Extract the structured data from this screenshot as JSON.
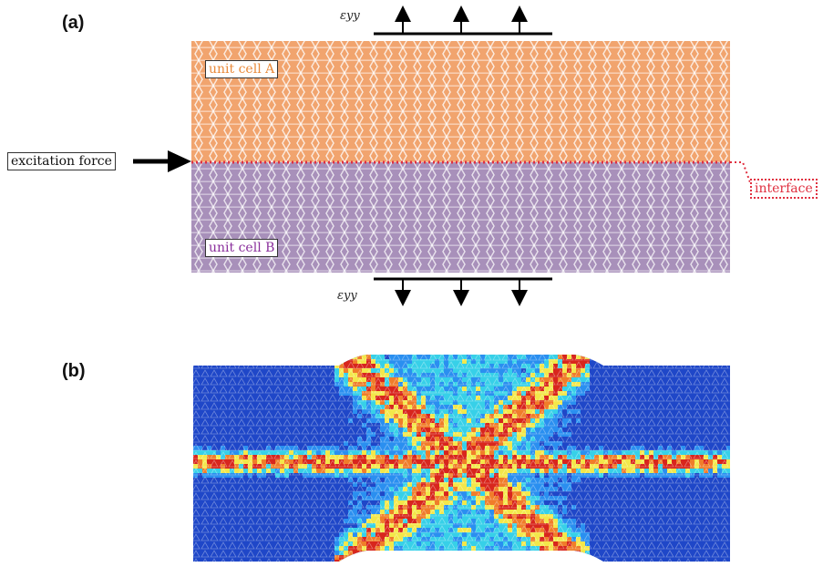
{
  "panels": {
    "a_label": "(a)",
    "b_label": "(b)"
  },
  "panel_a": {
    "unit_cell_a_label": "unit cell A",
    "unit_cell_b_label": "unit cell B",
    "excitation_label": "excitation force",
    "interface_label": "interface",
    "strain_top": "εyy",
    "strain_bottom": "εyy",
    "colors": {
      "cell_a": "#f1a46e",
      "cell_b": "#a890ba",
      "interface": "#e03040"
    }
  },
  "panel_b": {
    "colormap": [
      "#1f47c8",
      "#2a8ff0",
      "#37d0e8",
      "#f3e74a",
      "#f07d2a",
      "#d8261d"
    ]
  }
}
